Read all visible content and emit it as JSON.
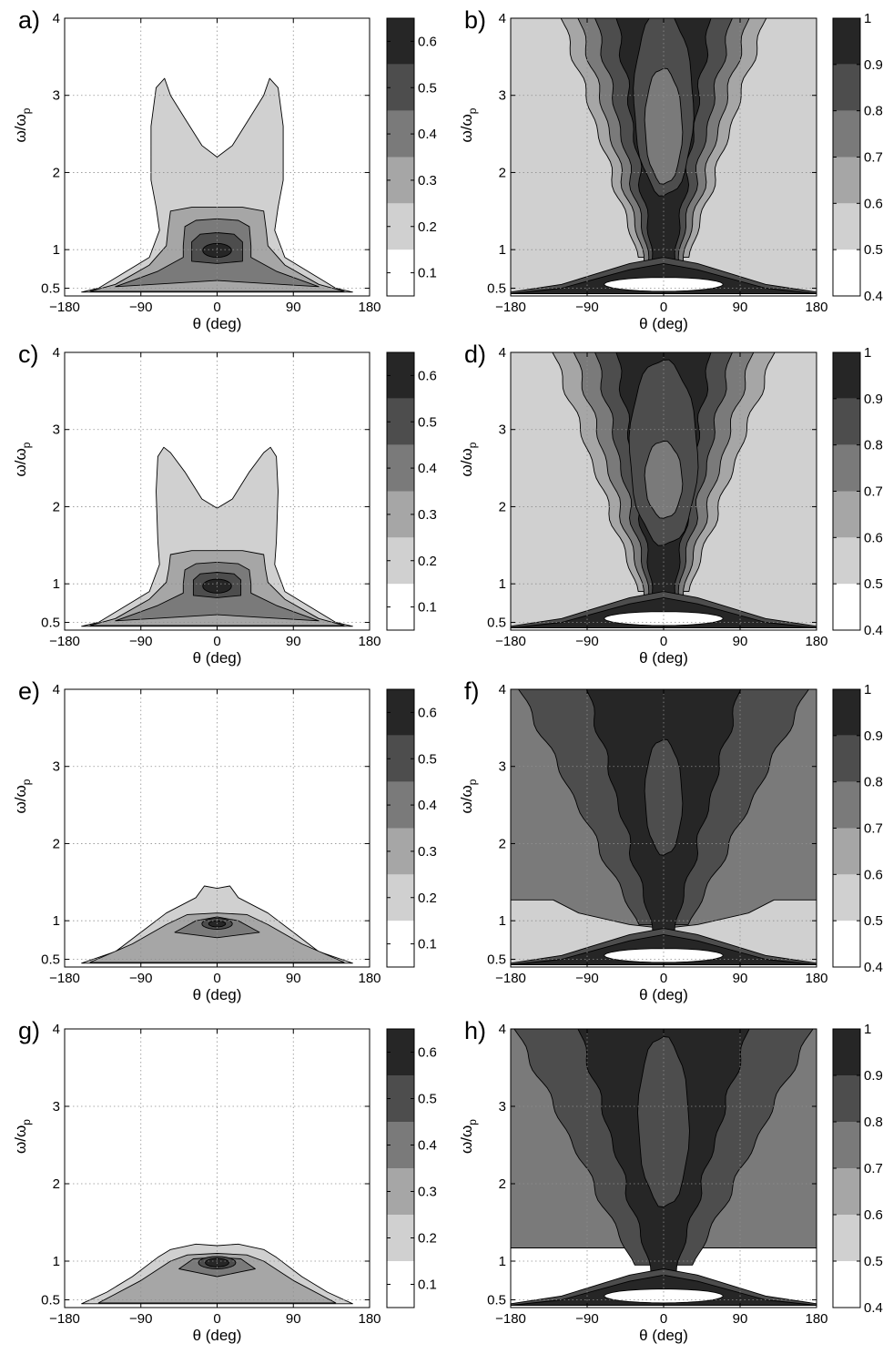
{
  "chart_data": [
    {
      "id": "a",
      "type": "heatmap",
      "panel_label": "a)",
      "xlabel": "θ (deg)",
      "ylabel": "ω/ω",
      "ylabel_sub": "p",
      "xlim": [
        -180,
        180
      ],
      "ylim": [
        0.4,
        4
      ],
      "x_ticks": [
        "−180",
        "−90",
        "0",
        "90",
        "180"
      ],
      "x_tick_values": [
        -180,
        -90,
        0,
        90,
        180
      ],
      "y_ticks": [
        "0.5",
        "1",
        "2",
        "3",
        "4"
      ],
      "y_tick_values": [
        0.5,
        1,
        2,
        3,
        4
      ],
      "grid": true,
      "colorbar": {
        "levels": [
          0.05,
          0.15,
          0.25,
          0.35,
          0.45,
          0.55,
          0.65
        ],
        "ticks": [
          "0.1",
          "0.2",
          "0.3",
          "0.4",
          "0.5",
          "0.6"
        ],
        "tick_values": [
          0.1,
          0.2,
          0.3,
          0.4,
          0.5,
          0.6
        ]
      }
    },
    {
      "id": "b",
      "type": "heatmap",
      "panel_label": "b)",
      "xlabel": "θ (deg)",
      "ylabel": "ω/ω",
      "ylabel_sub": "p",
      "xlim": [
        -180,
        180
      ],
      "ylim": [
        0.4,
        4
      ],
      "x_ticks": [
        "−180",
        "−90",
        "0",
        "90",
        "180"
      ],
      "x_tick_values": [
        -180,
        -90,
        0,
        90,
        180
      ],
      "y_ticks": [
        "0.5",
        "1",
        "2",
        "3",
        "4"
      ],
      "y_tick_values": [
        0.5,
        1,
        2,
        3,
        4
      ],
      "grid": true,
      "colorbar": {
        "levels": [
          0.4,
          0.5,
          0.6,
          0.7,
          0.8,
          0.9,
          1.0
        ],
        "ticks": [
          "0.4",
          "0.5",
          "0.6",
          "0.7",
          "0.8",
          "0.9",
          "1"
        ],
        "tick_values": [
          0.4,
          0.5,
          0.6,
          0.7,
          0.8,
          0.9,
          1.0
        ]
      }
    },
    {
      "id": "c",
      "type": "heatmap",
      "panel_label": "c)",
      "xlabel": "θ (deg)",
      "ylabel": "ω/ω",
      "ylabel_sub": "p",
      "xlim": [
        -180,
        180
      ],
      "ylim": [
        0.4,
        4
      ],
      "x_ticks": [
        "−180",
        "−90",
        "0",
        "90",
        "180"
      ],
      "x_tick_values": [
        -180,
        -90,
        0,
        90,
        180
      ],
      "y_ticks": [
        "0.5",
        "1",
        "2",
        "3",
        "4"
      ],
      "y_tick_values": [
        0.5,
        1,
        2,
        3,
        4
      ],
      "grid": true,
      "colorbar": {
        "levels": [
          0.05,
          0.15,
          0.25,
          0.35,
          0.45,
          0.55,
          0.65
        ],
        "ticks": [
          "0.1",
          "0.2",
          "0.3",
          "0.4",
          "0.5",
          "0.6"
        ],
        "tick_values": [
          0.1,
          0.2,
          0.3,
          0.4,
          0.5,
          0.6
        ]
      }
    },
    {
      "id": "d",
      "type": "heatmap",
      "panel_label": "d)",
      "xlabel": "θ (deg)",
      "ylabel": "ω/ω",
      "ylabel_sub": "p",
      "xlim": [
        -180,
        180
      ],
      "ylim": [
        0.4,
        4
      ],
      "x_ticks": [
        "−180",
        "−90",
        "0",
        "90",
        "180"
      ],
      "x_tick_values": [
        -180,
        -90,
        0,
        90,
        180
      ],
      "y_ticks": [
        "0.5",
        "1",
        "2",
        "3",
        "4"
      ],
      "y_tick_values": [
        0.5,
        1,
        2,
        3,
        4
      ],
      "grid": true,
      "colorbar": {
        "levels": [
          0.4,
          0.5,
          0.6,
          0.7,
          0.8,
          0.9,
          1.0
        ],
        "ticks": [
          "0.4",
          "0.5",
          "0.6",
          "0.7",
          "0.8",
          "0.9",
          "1"
        ],
        "tick_values": [
          0.4,
          0.5,
          0.6,
          0.7,
          0.8,
          0.9,
          1.0
        ]
      }
    },
    {
      "id": "e",
      "type": "heatmap",
      "panel_label": "e)",
      "xlabel": "θ (deg)",
      "ylabel": "ω/ω",
      "ylabel_sub": "p",
      "xlim": [
        -180,
        180
      ],
      "ylim": [
        0.4,
        4
      ],
      "x_ticks": [
        "−180",
        "−90",
        "0",
        "90",
        "180"
      ],
      "x_tick_values": [
        -180,
        -90,
        0,
        90,
        180
      ],
      "y_ticks": [
        "0.5",
        "1",
        "2",
        "3",
        "4"
      ],
      "y_tick_values": [
        0.5,
        1,
        2,
        3,
        4
      ],
      "grid": true,
      "colorbar": {
        "levels": [
          0.05,
          0.15,
          0.25,
          0.35,
          0.45,
          0.55,
          0.65
        ],
        "ticks": [
          "0.1",
          "0.2",
          "0.3",
          "0.4",
          "0.5",
          "0.6"
        ],
        "tick_values": [
          0.1,
          0.2,
          0.3,
          0.4,
          0.5,
          0.6
        ]
      }
    },
    {
      "id": "f",
      "type": "heatmap",
      "panel_label": "f)",
      "xlabel": "θ (deg)",
      "ylabel": "ω/ω",
      "ylabel_sub": "p",
      "xlim": [
        -180,
        180
      ],
      "ylim": [
        0.4,
        4
      ],
      "x_ticks": [
        "−180",
        "−90",
        "0",
        "90",
        "180"
      ],
      "x_tick_values": [
        -180,
        -90,
        0,
        90,
        180
      ],
      "y_ticks": [
        "0.5",
        "1",
        "2",
        "3",
        "4"
      ],
      "y_tick_values": [
        0.5,
        1,
        2,
        3,
        4
      ],
      "grid": true,
      "colorbar": {
        "levels": [
          0.4,
          0.5,
          0.6,
          0.7,
          0.8,
          0.9,
          1.0
        ],
        "ticks": [
          "0.4",
          "0.5",
          "0.6",
          "0.7",
          "0.8",
          "0.9",
          "1"
        ],
        "tick_values": [
          0.4,
          0.5,
          0.6,
          0.7,
          0.8,
          0.9,
          1.0
        ]
      }
    },
    {
      "id": "g",
      "type": "heatmap",
      "panel_label": "g)",
      "xlabel": "θ (deg)",
      "ylabel": "ω/ω",
      "ylabel_sub": "p",
      "xlim": [
        -180,
        180
      ],
      "ylim": [
        0.4,
        4
      ],
      "x_ticks": [
        "−180",
        "−90",
        "0",
        "90",
        "180"
      ],
      "x_tick_values": [
        -180,
        -90,
        0,
        90,
        180
      ],
      "y_ticks": [
        "0.5",
        "1",
        "2",
        "3",
        "4"
      ],
      "y_tick_values": [
        0.5,
        1,
        2,
        3,
        4
      ],
      "grid": true,
      "colorbar": {
        "levels": [
          0.05,
          0.15,
          0.25,
          0.35,
          0.45,
          0.55,
          0.65
        ],
        "ticks": [
          "0.1",
          "0.2",
          "0.3",
          "0.4",
          "0.5",
          "0.6"
        ],
        "tick_values": [
          0.1,
          0.2,
          0.3,
          0.4,
          0.5,
          0.6
        ]
      }
    },
    {
      "id": "h",
      "type": "heatmap",
      "panel_label": "h)",
      "xlabel": "θ (deg)",
      "ylabel": "ω/ω",
      "ylabel_sub": "p",
      "xlim": [
        -180,
        180
      ],
      "ylim": [
        0.4,
        4
      ],
      "x_ticks": [
        "−180",
        "−90",
        "0",
        "90",
        "180"
      ],
      "x_tick_values": [
        -180,
        -90,
        0,
        90,
        180
      ],
      "y_ticks": [
        "0.5",
        "1",
        "2",
        "3",
        "4"
      ],
      "y_tick_values": [
        0.5,
        1,
        2,
        3,
        4
      ],
      "grid": true,
      "colorbar": {
        "levels": [
          0.4,
          0.5,
          0.6,
          0.7,
          0.8,
          0.9,
          1.0
        ],
        "ticks": [
          "0.4",
          "0.5",
          "0.6",
          "0.7",
          "0.8",
          "0.9",
          "1"
        ],
        "tick_values": [
          0.4,
          0.5,
          0.6,
          0.7,
          0.8,
          0.9,
          1.0
        ]
      }
    }
  ],
  "colors": {
    "band_fills": [
      "#ffffff",
      "#d0d0d0",
      "#a6a6a6",
      "#7a7a7a",
      "#4d4d4d",
      "#262626",
      "#000000"
    ],
    "grid": "#909090",
    "contour_line": "#000000"
  }
}
